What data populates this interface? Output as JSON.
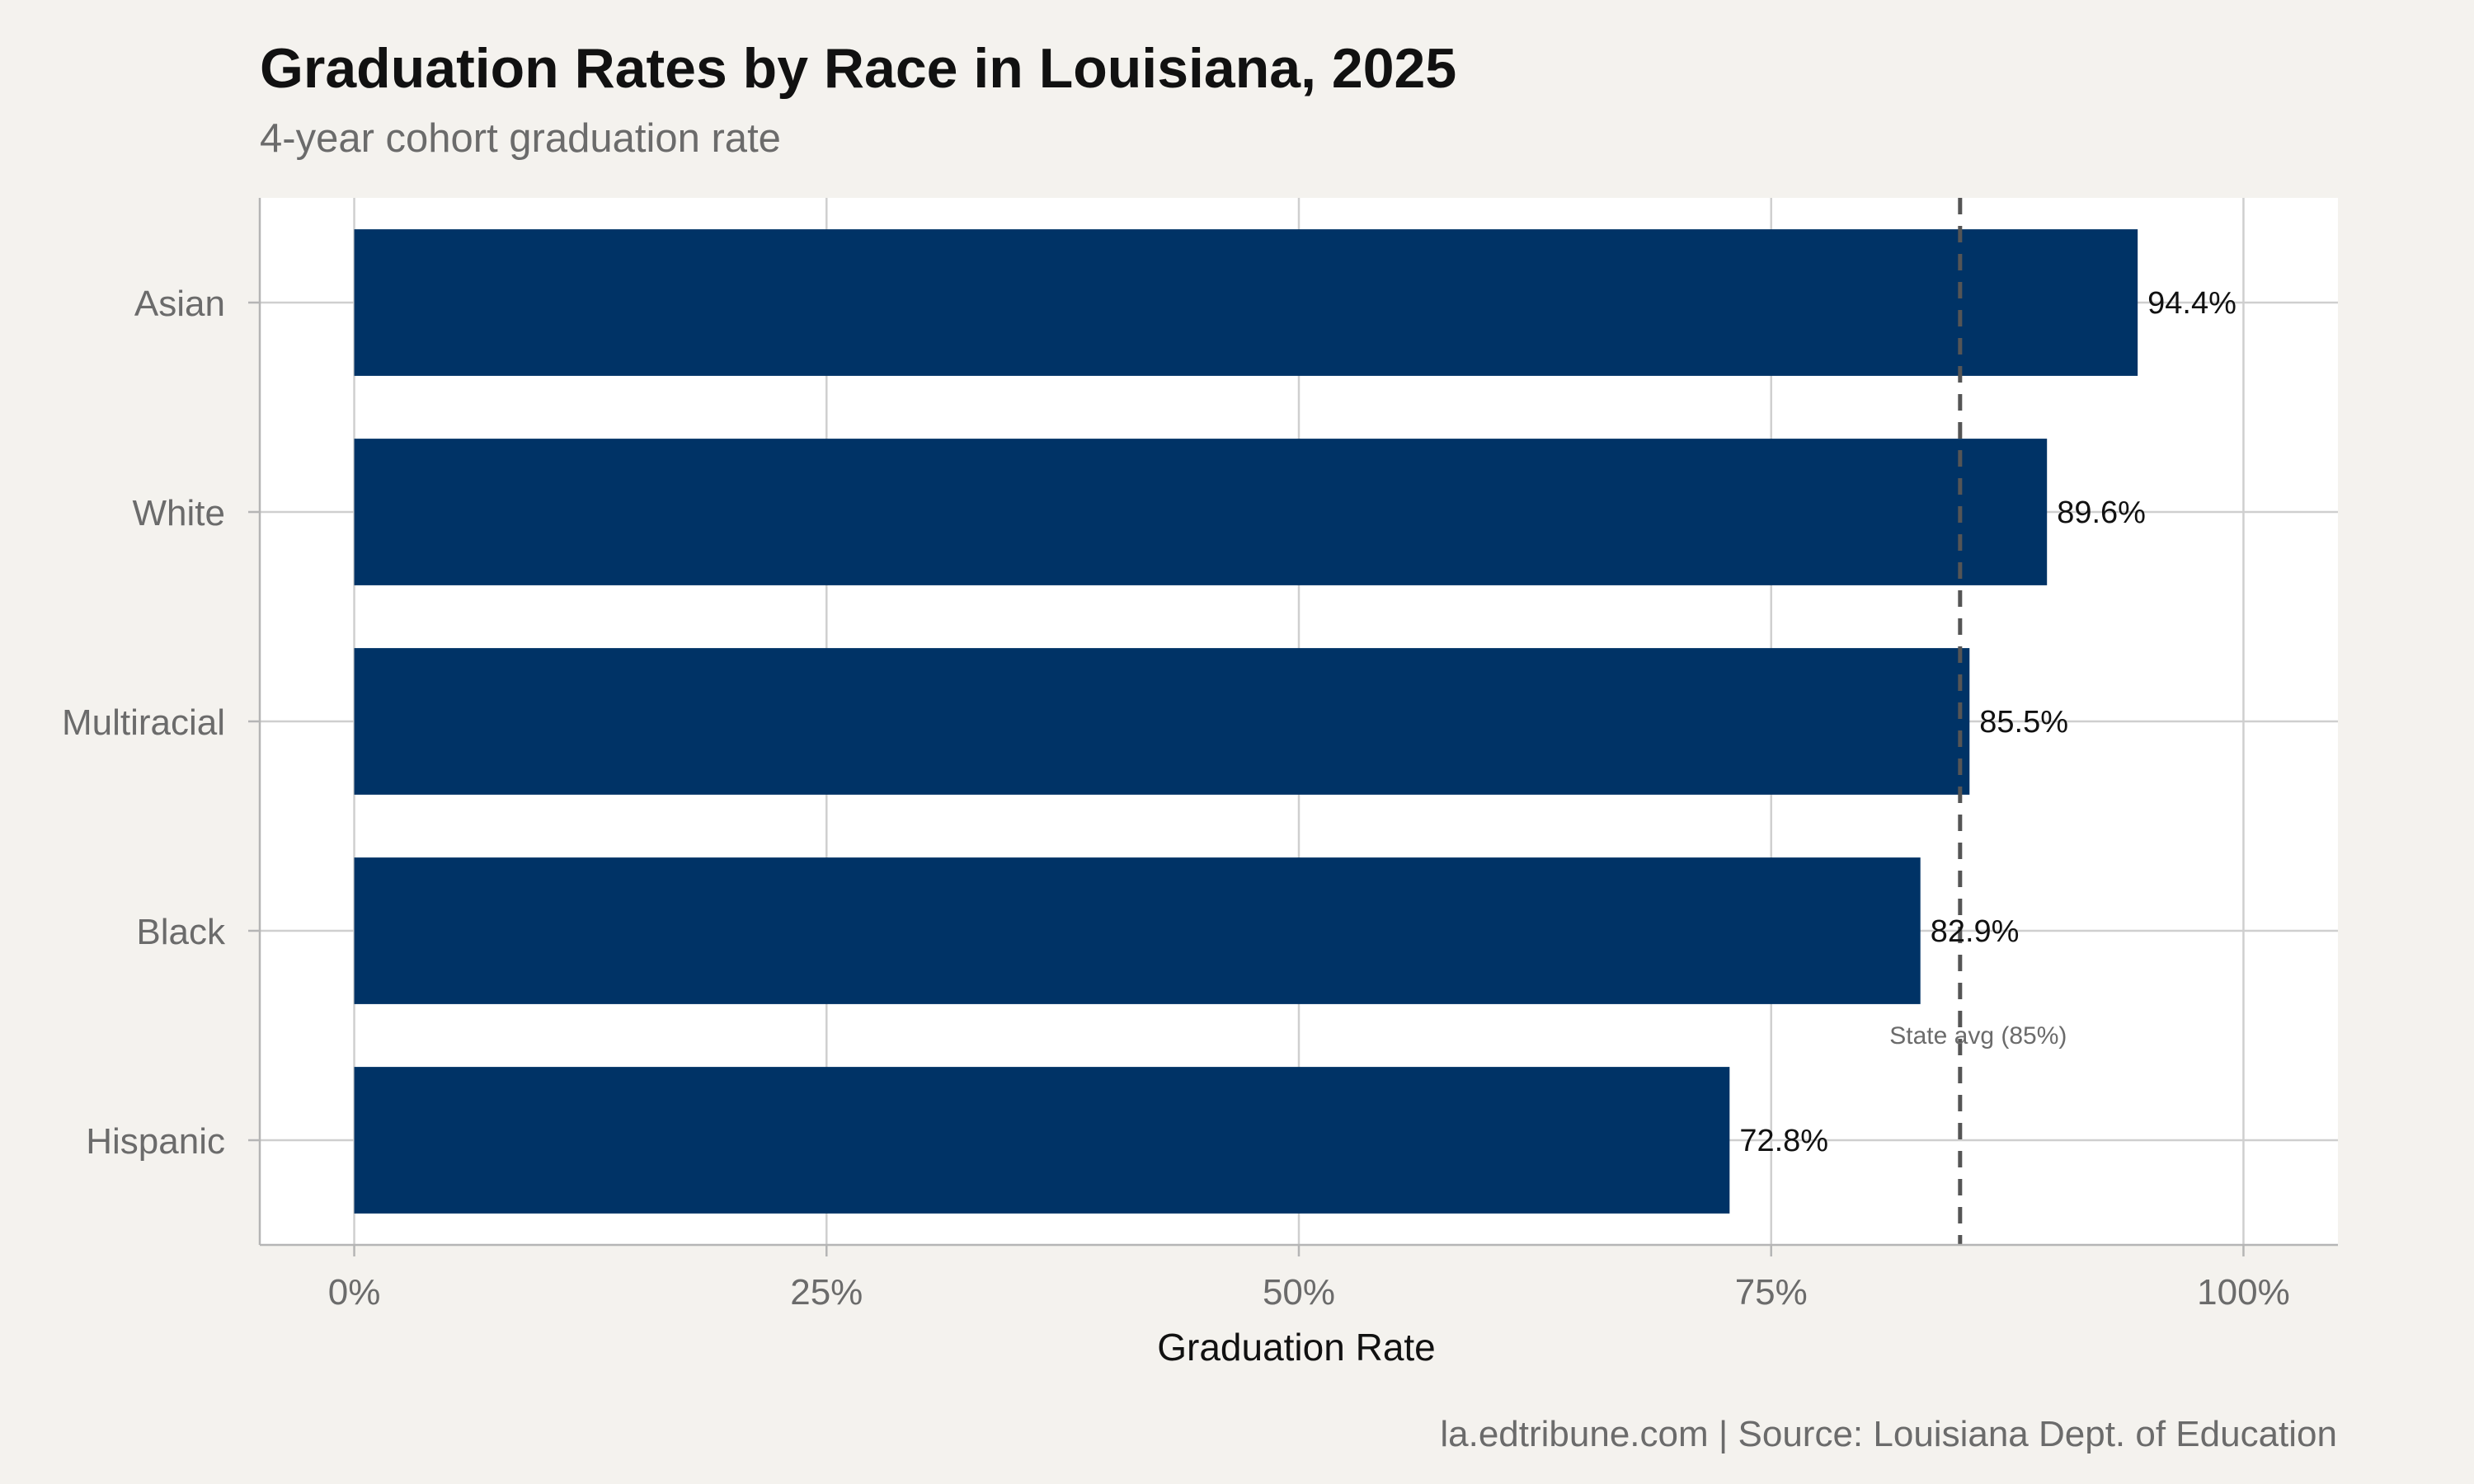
{
  "chart_data": {
    "type": "bar",
    "orientation": "horizontal",
    "title": "Graduation Rates by Race in Louisiana, 2025",
    "subtitle": "4-year cohort graduation rate",
    "xlabel": "Graduation Rate",
    "ylabel": "",
    "categories": [
      "Asian",
      "White",
      "Multiracial",
      "Black",
      "Hispanic"
    ],
    "values": [
      94.4,
      89.6,
      85.5,
      82.9,
      72.8
    ],
    "value_labels": [
      "94.4%",
      "89.6%",
      "85.5%",
      "82.9%",
      "72.8%"
    ],
    "xlim": [
      -5,
      105
    ],
    "xticks": [
      0,
      25,
      50,
      75,
      100
    ],
    "xtick_labels": [
      "0%",
      "25%",
      "50%",
      "75%",
      "100%"
    ],
    "reference_line": {
      "value": 85,
      "label": "State avg (85%)",
      "style": "dashed",
      "color": "#555555"
    },
    "bar_color": "#003366",
    "grid": true,
    "caption": "la.edtribune.com | Source: Louisiana Dept. of Education"
  }
}
